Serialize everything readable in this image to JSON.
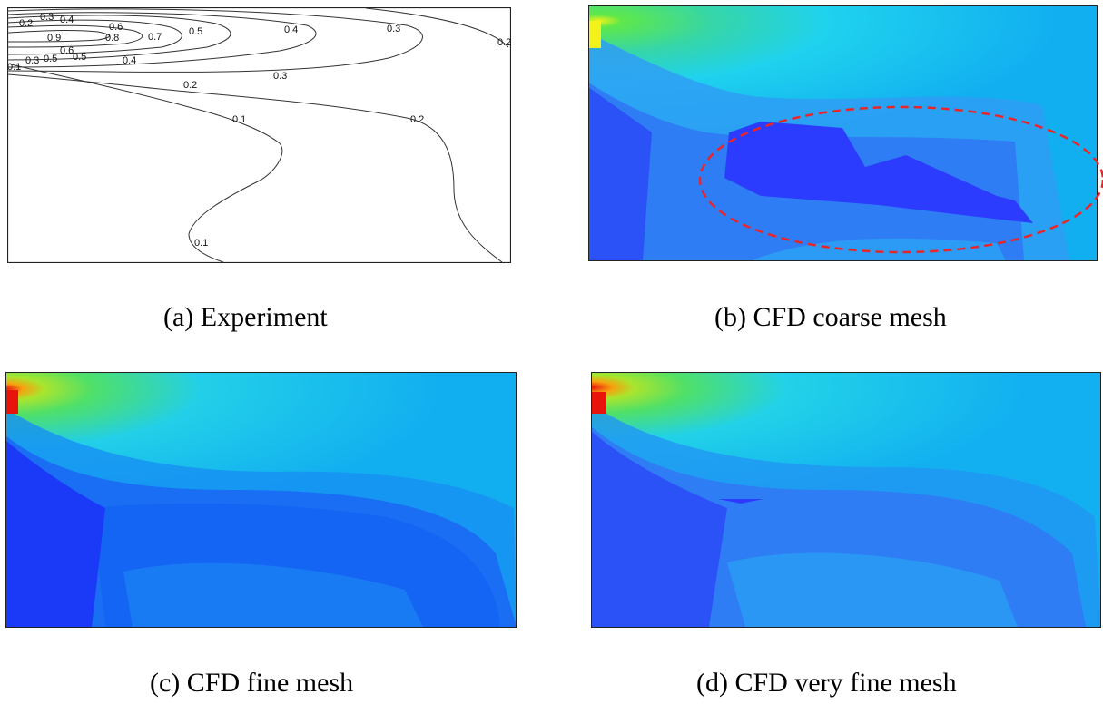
{
  "captions": {
    "a": "(a) Experiment",
    "b": "(b) CFD coarse mesh",
    "c": "(c) CFD fine mesh",
    "d": "(d) CFD very fine mesh"
  },
  "contour_labels": [
    "0.3",
    "0.2",
    "0.4",
    "0.9",
    "0.8",
    "0.6",
    "0.5",
    "0.7",
    "0.5",
    "0.4",
    "0.3",
    "0.2",
    "0.6",
    "0.5",
    "0.3",
    "0.4",
    "0.1",
    "0.3",
    "0.2",
    "0.1",
    "0.2",
    "0.1"
  ],
  "colors": {
    "inlet_hot": "#e8140c",
    "green": "#3ee06a",
    "cyan": "#1fd6ef",
    "light_blue": "#12aff0",
    "mid_blue": "#2f7df4",
    "dark_blue": "#2b3cff",
    "highlight_ellipse": "#e8262a"
  }
}
